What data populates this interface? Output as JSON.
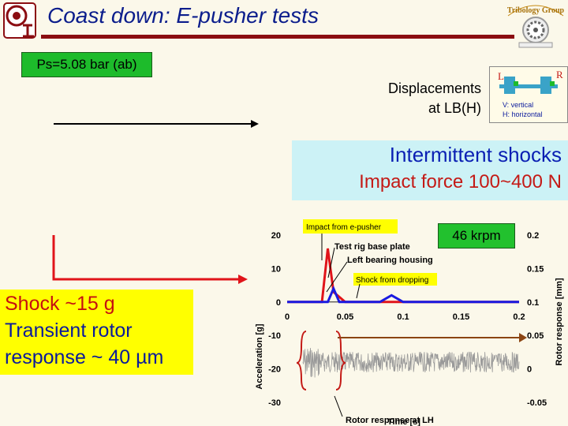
{
  "title": "Coast down: E-pusher tests",
  "badges": {
    "pressure": "Ps=5.08 bar (ab)",
    "speed": "46 krpm"
  },
  "displacement": {
    "line1": "Displacements",
    "line2": "at LB(H)"
  },
  "sensor_legend": {
    "left": "L",
    "right": "R",
    "v_label": "V: vertical",
    "h_label": "H: horizontal"
  },
  "shock_callout": {
    "line1": "Intermittent shocks",
    "line2": "Impact force 100~400 N"
  },
  "yellow_note": {
    "line1": "Shock ~15 g",
    "line2": "Transient rotor",
    "line3": "response ~ 40 µm"
  },
  "logo_text": "Tribology Group",
  "chart_data": {
    "type": "line",
    "xlabel": "Time [s]",
    "ylabel_left": "Acceleration [g]",
    "ylabel_right": "Rotor response [mm]",
    "x_ticks": [
      "0",
      "0.05",
      "0.1",
      "0.15",
      "0.2"
    ],
    "y_left_ticks": [
      "20",
      "10",
      "0",
      "-10",
      "-20",
      "-30"
    ],
    "y_right_ticks": [
      "0.2",
      "0.15",
      "0.1",
      "0.05",
      "0",
      "-0.05"
    ],
    "xlim": [
      0,
      0.2
    ],
    "ylim_left": [
      -30,
      20
    ],
    "ylim_right": [
      -0.05,
      0.2
    ],
    "series": [
      {
        "color": "#e0141a",
        "x": [
          0,
          0.02,
          0.03,
          0.035,
          0.04,
          0.05,
          0.08,
          0.2
        ],
        "y": [
          0,
          0,
          0,
          16,
          3,
          0,
          0,
          0
        ]
      },
      {
        "color": "#1a1ae0",
        "x": [
          0,
          0.02,
          0.035,
          0.04,
          0.045,
          0.06,
          0.08,
          0.09,
          0.1,
          0.2
        ],
        "y": [
          0.1,
          0.1,
          0.1,
          0.12,
          0.1,
          0.1,
          0.1,
          0.11,
          0.1,
          0.1
        ]
      }
    ],
    "annotations": [
      "Impact from e-pusher",
      "Test rig base plate",
      "Left bearing housing",
      "Shock from dropping",
      "Rotor response at LH"
    ]
  }
}
